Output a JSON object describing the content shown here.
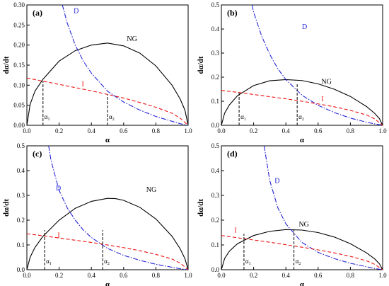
{
  "colors": {
    "NG": "#000000",
    "D": "#2424d6",
    "I": "#ee1111",
    "axis": "#000000"
  },
  "chart_data": [
    {
      "panel": "(a)",
      "type": "line",
      "xlabel": "α",
      "ylabel": "dα/dt",
      "xlim": [
        0,
        1.0
      ],
      "ylim": [
        0,
        0.3
      ],
      "xticks": [
        "0.0",
        "0.2",
        "0.4",
        "0.6",
        "0.8",
        "1.0"
      ],
      "yticks": [
        "0.00",
        "0.05",
        "0.10",
        "0.15",
        "0.20",
        "0.25",
        "0.30"
      ],
      "alpha_marks": {
        "alpha1": 0.1,
        "alpha2": 0.5,
        "alpha1_top": 0.11,
        "alpha2_top": 0.077,
        "alpha1_label": "α1",
        "alpha2_label": "α2"
      },
      "series": [
        {
          "name": "NG",
          "x": [
            0,
            0.02,
            0.05,
            0.1,
            0.2,
            0.3,
            0.4,
            0.5,
            0.6,
            0.7,
            0.8,
            0.9,
            0.95,
            0.98,
            1.0
          ],
          "y": [
            0,
            0.052,
            0.085,
            0.115,
            0.16,
            0.186,
            0.2,
            0.205,
            0.198,
            0.18,
            0.148,
            0.1,
            0.066,
            0.038,
            0
          ]
        },
        {
          "name": "D",
          "x": [
            0.22,
            0.25,
            0.3,
            0.35,
            0.4,
            0.5,
            0.6,
            0.7,
            0.8,
            0.9,
            0.95,
            1.0
          ],
          "y": [
            0.3,
            0.255,
            0.2,
            0.16,
            0.13,
            0.085,
            0.058,
            0.038,
            0.022,
            0.01,
            0.004,
            0
          ]
        },
        {
          "name": "I",
          "x": [
            0,
            0.1,
            0.2,
            0.3,
            0.4,
            0.5,
            0.6,
            0.7,
            0.8,
            0.9,
            0.95,
            1.0
          ],
          "y": [
            0.118,
            0.11,
            0.102,
            0.094,
            0.086,
            0.077,
            0.068,
            0.057,
            0.045,
            0.03,
            0.018,
            0
          ]
        }
      ],
      "labels": {
        "NG": {
          "text": "NG",
          "x": 0.62,
          "y": 0.21
        },
        "D": {
          "text": "D",
          "x": 0.29,
          "y": 0.28
        },
        "I": {
          "text": "I",
          "x": 0.34,
          "y": 0.097
        }
      }
    },
    {
      "panel": "(b)",
      "type": "line",
      "xlabel": "α",
      "ylabel": "dα/dt",
      "xlim": [
        0,
        1.0
      ],
      "ylim": [
        0,
        0.5
      ],
      "xticks": [
        "0.0",
        "0.2",
        "0.4",
        "0.6",
        "0.8",
        "1.0"
      ],
      "yticks": [
        "0.0",
        "0.1",
        "0.2",
        "0.3",
        "0.4",
        "0.5"
      ],
      "alpha_marks": {
        "alpha1": 0.11,
        "alpha2": 0.47,
        "alpha1_top": 0.135,
        "alpha2_top": 0.175,
        "alpha1_label": "α1",
        "alpha2_label": "α2"
      },
      "series": [
        {
          "name": "NG",
          "x": [
            0,
            0.02,
            0.05,
            0.1,
            0.2,
            0.3,
            0.4,
            0.5,
            0.6,
            0.7,
            0.8,
            0.9,
            0.95,
            0.98,
            1.0
          ],
          "y": [
            0,
            0.05,
            0.085,
            0.123,
            0.165,
            0.185,
            0.19,
            0.186,
            0.172,
            0.15,
            0.12,
            0.078,
            0.05,
            0.028,
            0
          ]
        },
        {
          "name": "D",
          "x": [
            0.19,
            0.2,
            0.25,
            0.3,
            0.35,
            0.4,
            0.5,
            0.6,
            0.7,
            0.8,
            0.9,
            0.95,
            1.0
          ],
          "y": [
            0.5,
            0.47,
            0.37,
            0.295,
            0.235,
            0.19,
            0.125,
            0.083,
            0.053,
            0.03,
            0.013,
            0.006,
            0
          ]
        },
        {
          "name": "I",
          "x": [
            0,
            0.1,
            0.2,
            0.3,
            0.4,
            0.5,
            0.6,
            0.7,
            0.8,
            0.9,
            0.95,
            1.0
          ],
          "y": [
            0.145,
            0.137,
            0.128,
            0.119,
            0.11,
            0.1,
            0.089,
            0.077,
            0.062,
            0.043,
            0.027,
            0
          ]
        }
      ],
      "labels": {
        "NG": {
          "text": "NG",
          "x": 0.62,
          "y": 0.172
        },
        "D": {
          "text": "D",
          "x": 0.5,
          "y": 0.4
        },
        "I": {
          "text": "I",
          "x": 0.62,
          "y": 0.1
        }
      }
    },
    {
      "panel": "(c)",
      "type": "line",
      "xlabel": "α",
      "ylabel": "dα/dt",
      "xlim": [
        0,
        1.0
      ],
      "ylim": [
        0,
        0.5
      ],
      "xticks": [
        "0.0",
        "0.2",
        "0.4",
        "0.6",
        "0.8",
        "1.0"
      ],
      "yticks": [
        "0.0",
        "0.1",
        "0.2",
        "0.3",
        "0.4",
        "0.5"
      ],
      "alpha_marks": {
        "alpha1": 0.11,
        "alpha2": 0.47,
        "alpha1_top": 0.16,
        "alpha2_top": 0.16,
        "alpha1_label": "α1",
        "alpha2_label": "α2"
      },
      "series": [
        {
          "name": "NG",
          "x": [
            0,
            0.02,
            0.05,
            0.1,
            0.2,
            0.3,
            0.4,
            0.5,
            0.55,
            0.6,
            0.7,
            0.8,
            0.9,
            0.95,
            0.98,
            1.0
          ],
          "y": [
            0,
            0.05,
            0.09,
            0.135,
            0.2,
            0.248,
            0.276,
            0.288,
            0.287,
            0.28,
            0.252,
            0.205,
            0.135,
            0.085,
            0.045,
            0
          ]
        },
        {
          "name": "D",
          "x": [
            0.135,
            0.15,
            0.2,
            0.25,
            0.3,
            0.35,
            0.4,
            0.5,
            0.6,
            0.7,
            0.8,
            0.9,
            0.95,
            1.0
          ],
          "y": [
            0.5,
            0.44,
            0.32,
            0.25,
            0.2,
            0.16,
            0.13,
            0.086,
            0.058,
            0.038,
            0.022,
            0.01,
            0.004,
            0
          ]
        },
        {
          "name": "I",
          "x": [
            0,
            0.1,
            0.2,
            0.3,
            0.4,
            0.5,
            0.6,
            0.7,
            0.8,
            0.9,
            0.95,
            1.0
          ],
          "y": [
            0.145,
            0.137,
            0.128,
            0.119,
            0.11,
            0.1,
            0.089,
            0.077,
            0.062,
            0.043,
            0.027,
            0
          ]
        }
      ],
      "labels": {
        "NG": {
          "text": "NG",
          "x": 0.74,
          "y": 0.315
        },
        "D": {
          "text": "D",
          "x": 0.18,
          "y": 0.32
        },
        "I": {
          "text": "I",
          "x": 0.19,
          "y": 0.13
        }
      }
    },
    {
      "panel": "(d)",
      "type": "line",
      "xlabel": "α",
      "ylabel": "dα/dt",
      "xlim": [
        0,
        1.0
      ],
      "ylim": [
        0,
        0.5
      ],
      "xticks": [
        "0.0",
        "0.2",
        "0.4",
        "0.6",
        "0.8",
        "1.0"
      ],
      "yticks": [
        "0.0",
        "0.1",
        "0.2",
        "0.3",
        "0.4",
        "0.5"
      ],
      "alpha_marks": {
        "alpha1": 0.14,
        "alpha2": 0.45,
        "alpha1_top": 0.145,
        "alpha2_top": 0.16,
        "alpha1_label": "α1",
        "alpha2_label": "α2"
      },
      "series": [
        {
          "name": "NG",
          "x": [
            0,
            0.02,
            0.05,
            0.1,
            0.2,
            0.3,
            0.4,
            0.5,
            0.6,
            0.7,
            0.8,
            0.9,
            0.95,
            0.98,
            1.0
          ],
          "y": [
            0,
            0.045,
            0.075,
            0.105,
            0.138,
            0.155,
            0.162,
            0.16,
            0.15,
            0.132,
            0.105,
            0.068,
            0.044,
            0.024,
            0
          ]
        },
        {
          "name": "D",
          "x": [
            0.265,
            0.3,
            0.35,
            0.4,
            0.5,
            0.6,
            0.7,
            0.8,
            0.9,
            0.95,
            1.0
          ],
          "y": [
            0.5,
            0.36,
            0.25,
            0.185,
            0.11,
            0.07,
            0.045,
            0.026,
            0.012,
            0.005,
            0
          ]
        },
        {
          "name": "I",
          "x": [
            0,
            0.1,
            0.2,
            0.3,
            0.4,
            0.5,
            0.6,
            0.7,
            0.8,
            0.9,
            0.95,
            1.0
          ],
          "y": [
            0.138,
            0.129,
            0.12,
            0.111,
            0.101,
            0.091,
            0.08,
            0.068,
            0.054,
            0.036,
            0.022,
            0
          ]
        }
      ],
      "labels": {
        "NG": {
          "text": "NG",
          "x": 0.48,
          "y": 0.175
        },
        "D": {
          "text": "D",
          "x": 0.33,
          "y": 0.35
        },
        "I": {
          "text": "I",
          "x": 0.08,
          "y": 0.15
        }
      }
    }
  ]
}
